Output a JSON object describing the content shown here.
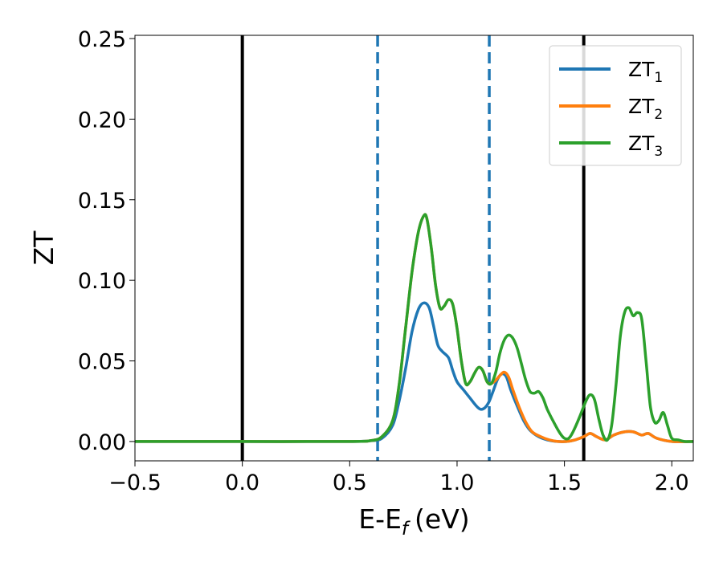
{
  "chart_data": {
    "type": "line",
    "xlabel": "E-E",
    "xlabel_sub": "f",
    "xlabel_unit": "(eV)",
    "ylabel": "ZT",
    "xlim": [
      -0.5,
      2.1
    ],
    "ylim": [
      -0.012,
      0.252
    ],
    "xticks": [
      -0.5,
      0.0,
      0.5,
      1.0,
      1.5,
      2.0
    ],
    "xtick_labels": [
      "−0.5",
      "0.0",
      "0.5",
      "1.0",
      "1.5",
      "2.0"
    ],
    "yticks": [
      0.0,
      0.05,
      0.1,
      0.15,
      0.2,
      0.25
    ],
    "ytick_labels": [
      "0.00",
      "0.05",
      "0.10",
      "0.15",
      "0.20",
      "0.25"
    ],
    "grid": false,
    "legend_position": "top-right",
    "vertical_lines": [
      {
        "x": 0.0,
        "style": "solid",
        "color": "#000000"
      },
      {
        "x": 1.59,
        "style": "solid",
        "color": "#000000"
      },
      {
        "x": 0.63,
        "style": "dashed",
        "color": "#1f77b4"
      },
      {
        "x": 1.15,
        "style": "dashed",
        "color": "#1f77b4"
      }
    ],
    "series": [
      {
        "name": "ZT",
        "sub": "1",
        "color": "#1f77b4",
        "points": [
          [
            -0.5,
            0
          ],
          [
            0.0,
            0
          ],
          [
            0.5,
            0
          ],
          [
            0.6,
            0.0005
          ],
          [
            0.65,
            0.002
          ],
          [
            0.7,
            0.01
          ],
          [
            0.73,
            0.025
          ],
          [
            0.76,
            0.045
          ],
          [
            0.79,
            0.068
          ],
          [
            0.82,
            0.082
          ],
          [
            0.845,
            0.086
          ],
          [
            0.87,
            0.083
          ],
          [
            0.89,
            0.072
          ],
          [
            0.91,
            0.06
          ],
          [
            0.93,
            0.056
          ],
          [
            0.96,
            0.052
          ],
          [
            0.98,
            0.044
          ],
          [
            1.0,
            0.037
          ],
          [
            1.03,
            0.032
          ],
          [
            1.06,
            0.027
          ],
          [
            1.09,
            0.022
          ],
          [
            1.11,
            0.02
          ],
          [
            1.13,
            0.021
          ],
          [
            1.15,
            0.025
          ],
          [
            1.17,
            0.032
          ],
          [
            1.19,
            0.039
          ],
          [
            1.21,
            0.042
          ],
          [
            1.23,
            0.04
          ],
          [
            1.25,
            0.032
          ],
          [
            1.28,
            0.022
          ],
          [
            1.31,
            0.013
          ],
          [
            1.34,
            0.007
          ],
          [
            1.38,
            0.003
          ],
          [
            1.42,
            0.001
          ],
          [
            1.47,
            0.0
          ],
          [
            1.51,
            0.0
          ],
          [
            1.55,
            0.001
          ],
          [
            1.59,
            0.003
          ],
          [
            1.62,
            0.005
          ],
          [
            1.65,
            0.003
          ],
          [
            1.69,
            0.001
          ],
          [
            1.73,
            0.004
          ],
          [
            1.78,
            0.006
          ],
          [
            1.82,
            0.006
          ],
          [
            1.86,
            0.004
          ],
          [
            1.89,
            0.005
          ],
          [
            1.93,
            0.002
          ],
          [
            2.0,
            0.0
          ],
          [
            2.1,
            0.0
          ]
        ]
      },
      {
        "name": "ZT",
        "sub": "2",
        "color": "#ff7f0e",
        "points": [
          [
            -0.5,
            0
          ],
          [
            0.0,
            0
          ],
          [
            0.5,
            0
          ],
          [
            0.6,
            0.0006
          ],
          [
            0.65,
            0.003
          ],
          [
            0.7,
            0.013
          ],
          [
            0.73,
            0.035
          ],
          [
            0.76,
            0.07
          ],
          [
            0.79,
            0.105
          ],
          [
            0.82,
            0.13
          ],
          [
            0.845,
            0.14
          ],
          [
            0.86,
            0.138
          ],
          [
            0.88,
            0.12
          ],
          [
            0.9,
            0.097
          ],
          [
            0.92,
            0.083
          ],
          [
            0.94,
            0.084
          ],
          [
            0.96,
            0.088
          ],
          [
            0.98,
            0.085
          ],
          [
            1.0,
            0.07
          ],
          [
            1.02,
            0.05
          ],
          [
            1.04,
            0.036
          ],
          [
            1.06,
            0.037
          ],
          [
            1.08,
            0.042
          ],
          [
            1.1,
            0.046
          ],
          [
            1.12,
            0.044
          ],
          [
            1.14,
            0.037
          ],
          [
            1.16,
            0.036
          ],
          [
            1.18,
            0.038
          ],
          [
            1.2,
            0.041
          ],
          [
            1.22,
            0.043
          ],
          [
            1.24,
            0.04
          ],
          [
            1.26,
            0.032
          ],
          [
            1.29,
            0.021
          ],
          [
            1.32,
            0.012
          ],
          [
            1.35,
            0.006
          ],
          [
            1.39,
            0.003
          ],
          [
            1.43,
            0.001
          ],
          [
            1.47,
            0.0
          ],
          [
            1.51,
            0.0
          ],
          [
            1.55,
            0.001
          ],
          [
            1.59,
            0.003
          ],
          [
            1.62,
            0.005
          ],
          [
            1.65,
            0.003
          ],
          [
            1.69,
            0.001
          ],
          [
            1.73,
            0.004
          ],
          [
            1.78,
            0.006
          ],
          [
            1.82,
            0.006
          ],
          [
            1.86,
            0.004
          ],
          [
            1.89,
            0.005
          ],
          [
            1.93,
            0.002
          ],
          [
            2.0,
            0.0
          ],
          [
            2.1,
            0.0
          ]
        ]
      },
      {
        "name": "ZT",
        "sub": "3",
        "color": "#2ca02c",
        "points": [
          [
            -0.5,
            0
          ],
          [
            0.0,
            0
          ],
          [
            0.5,
            0
          ],
          [
            0.6,
            0.0006
          ],
          [
            0.65,
            0.003
          ],
          [
            0.7,
            0.013
          ],
          [
            0.73,
            0.035
          ],
          [
            0.76,
            0.07
          ],
          [
            0.79,
            0.105
          ],
          [
            0.82,
            0.13
          ],
          [
            0.845,
            0.14
          ],
          [
            0.86,
            0.138
          ],
          [
            0.88,
            0.12
          ],
          [
            0.9,
            0.097
          ],
          [
            0.92,
            0.083
          ],
          [
            0.94,
            0.084
          ],
          [
            0.96,
            0.088
          ],
          [
            0.98,
            0.085
          ],
          [
            1.0,
            0.07
          ],
          [
            1.02,
            0.05
          ],
          [
            1.04,
            0.036
          ],
          [
            1.06,
            0.037
          ],
          [
            1.08,
            0.042
          ],
          [
            1.1,
            0.046
          ],
          [
            1.12,
            0.044
          ],
          [
            1.14,
            0.037
          ],
          [
            1.16,
            0.036
          ],
          [
            1.18,
            0.043
          ],
          [
            1.2,
            0.055
          ],
          [
            1.22,
            0.063
          ],
          [
            1.24,
            0.066
          ],
          [
            1.26,
            0.064
          ],
          [
            1.28,
            0.058
          ],
          [
            1.3,
            0.048
          ],
          [
            1.32,
            0.038
          ],
          [
            1.34,
            0.031
          ],
          [
            1.36,
            0.03
          ],
          [
            1.38,
            0.031
          ],
          [
            1.4,
            0.027
          ],
          [
            1.42,
            0.02
          ],
          [
            1.45,
            0.012
          ],
          [
            1.48,
            0.005
          ],
          [
            1.5,
            0.002
          ],
          [
            1.52,
            0.002
          ],
          [
            1.54,
            0.006
          ],
          [
            1.57,
            0.015
          ],
          [
            1.6,
            0.025
          ],
          [
            1.62,
            0.029
          ],
          [
            1.64,
            0.026
          ],
          [
            1.66,
            0.014
          ],
          [
            1.68,
            0.004
          ],
          [
            1.7,
            0.001
          ],
          [
            1.72,
            0.01
          ],
          [
            1.74,
            0.035
          ],
          [
            1.76,
            0.065
          ],
          [
            1.78,
            0.08
          ],
          [
            1.8,
            0.083
          ],
          [
            1.82,
            0.078
          ],
          [
            1.84,
            0.08
          ],
          [
            1.86,
            0.076
          ],
          [
            1.88,
            0.05
          ],
          [
            1.9,
            0.022
          ],
          [
            1.92,
            0.012
          ],
          [
            1.94,
            0.013
          ],
          [
            1.96,
            0.018
          ],
          [
            1.98,
            0.01
          ],
          [
            2.0,
            0.002
          ],
          [
            2.03,
            0.001
          ],
          [
            2.06,
            0.0
          ],
          [
            2.1,
            0.0
          ]
        ]
      }
    ]
  }
}
